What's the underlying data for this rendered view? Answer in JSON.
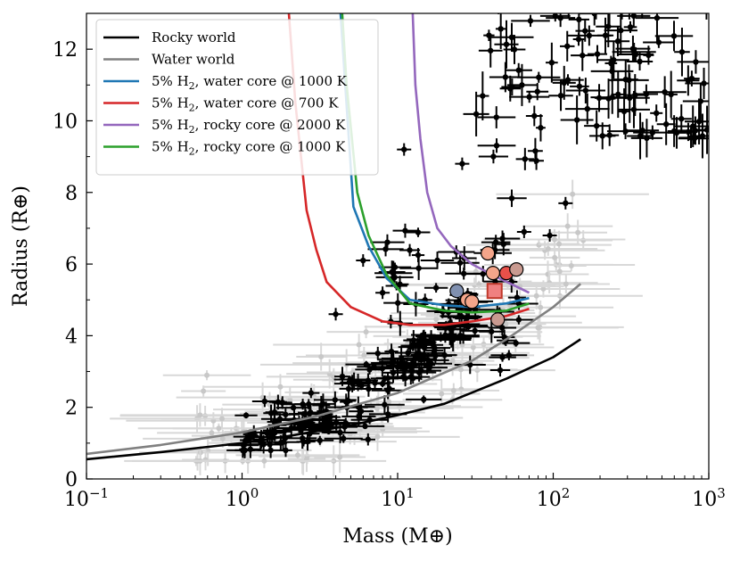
{
  "chart_data": {
    "type": "scatter",
    "xscale": "log",
    "xlabel": "Mass (M⊕)",
    "ylabel": "Radius (R⊕)",
    "xlim": [
      0.1,
      1000
    ],
    "ylim": [
      0,
      13
    ],
    "x_ticks": [
      {
        "value": 0.1,
        "base": "10",
        "exp": "−1"
      },
      {
        "value": 1,
        "base": "10",
        "exp": "0"
      },
      {
        "value": 10,
        "base": "10",
        "exp": "1"
      },
      {
        "value": 100,
        "base": "10",
        "exp": "2"
      },
      {
        "value": 1000,
        "base": "10",
        "exp": "3"
      }
    ],
    "y_ticks": [
      0,
      2,
      4,
      6,
      8,
      10,
      12
    ],
    "legend_position": "top-left",
    "series": [
      {
        "name": "Rocky world",
        "label": "Rocky world",
        "color": "#000000",
        "x": [
          0.1,
          0.3,
          1,
          2,
          5,
          10,
          20,
          50,
          100,
          150
        ],
        "y": [
          0.55,
          0.75,
          1.0,
          1.2,
          1.5,
          1.78,
          2.1,
          2.8,
          3.4,
          3.9
        ]
      },
      {
        "name": "Water world",
        "label": "Water world",
        "color": "#808080",
        "x": [
          0.1,
          0.3,
          1,
          3,
          10,
          30,
          50,
          100,
          150
        ],
        "y": [
          0.7,
          0.95,
          1.3,
          1.75,
          2.4,
          3.3,
          3.9,
          4.8,
          5.45
        ]
      },
      {
        "name": "5% H2, water core @ 1000 K",
        "label_pre": "5% H",
        "label_sub": "2",
        "label_post": ", water core @ 1000 K",
        "color": "#1f77b4",
        "x": [
          4.3,
          4.6,
          5.2,
          6.5,
          8.5,
          12,
          20,
          30,
          50,
          70
        ],
        "y": [
          13,
          11,
          7.6,
          6.5,
          5.6,
          5.0,
          4.85,
          4.8,
          4.9,
          5.05
        ]
      },
      {
        "name": "5% H2, water core @ 700 K",
        "label_pre": "5% H",
        "label_sub": "2",
        "label_post": ", water core @ 700 K",
        "color": "#d62728",
        "x": [
          2.0,
          2.2,
          2.6,
          3.0,
          3.5,
          5,
          8,
          12,
          20,
          30,
          50,
          70
        ],
        "y": [
          13,
          10.5,
          7.5,
          6.4,
          5.5,
          4.8,
          4.4,
          4.3,
          4.3,
          4.4,
          4.55,
          4.75
        ]
      },
      {
        "name": "5% H2, rocky core @ 2000 K",
        "label_pre": "5% H",
        "label_sub": "2",
        "label_post": ", rocky core @ 2000 K",
        "color": "#9467bd",
        "x": [
          12.5,
          13.0,
          14.0,
          15.5,
          18,
          22,
          30,
          45,
          70
        ],
        "y": [
          13,
          11,
          9.5,
          8.0,
          7.0,
          6.5,
          6.0,
          5.6,
          5.2
        ]
      },
      {
        "name": "5% H2, rocky core @ 1000 K",
        "label_pre": "5% H",
        "label_sub": "2",
        "label_post": ", rocky core @ 1000 K",
        "color": "#2ca02c",
        "x": [
          4.4,
          4.7,
          5.5,
          6.5,
          8.5,
          12,
          20,
          30,
          50,
          70
        ],
        "y": [
          13,
          11,
          8.0,
          6.8,
          5.7,
          4.9,
          4.7,
          4.65,
          4.7,
          4.9
        ]
      }
    ],
    "highlighted_planets": [
      {
        "x": 24,
        "y": 5.25,
        "color": "#8090b0",
        "marker": "circle"
      },
      {
        "x": 28,
        "y": 5.0,
        "color": "#f4a58a",
        "marker": "circle"
      },
      {
        "x": 30,
        "y": 4.95,
        "color": "#f4a58a",
        "marker": "circle"
      },
      {
        "x": 38,
        "y": 6.3,
        "color": "#f4a58a",
        "marker": "circle"
      },
      {
        "x": 41,
        "y": 5.75,
        "color": "#f4a58a",
        "marker": "circle"
      },
      {
        "x": 44,
        "y": 4.45,
        "color": "#c99a90",
        "marker": "circle"
      },
      {
        "x": 50,
        "y": 5.75,
        "color": "#e8504a",
        "marker": "circle"
      },
      {
        "x": 58,
        "y": 5.85,
        "color": "#c99a90",
        "marker": "circle"
      },
      {
        "x": 42,
        "y": 5.25,
        "color": "#f08080",
        "marker": "square"
      }
    ]
  }
}
